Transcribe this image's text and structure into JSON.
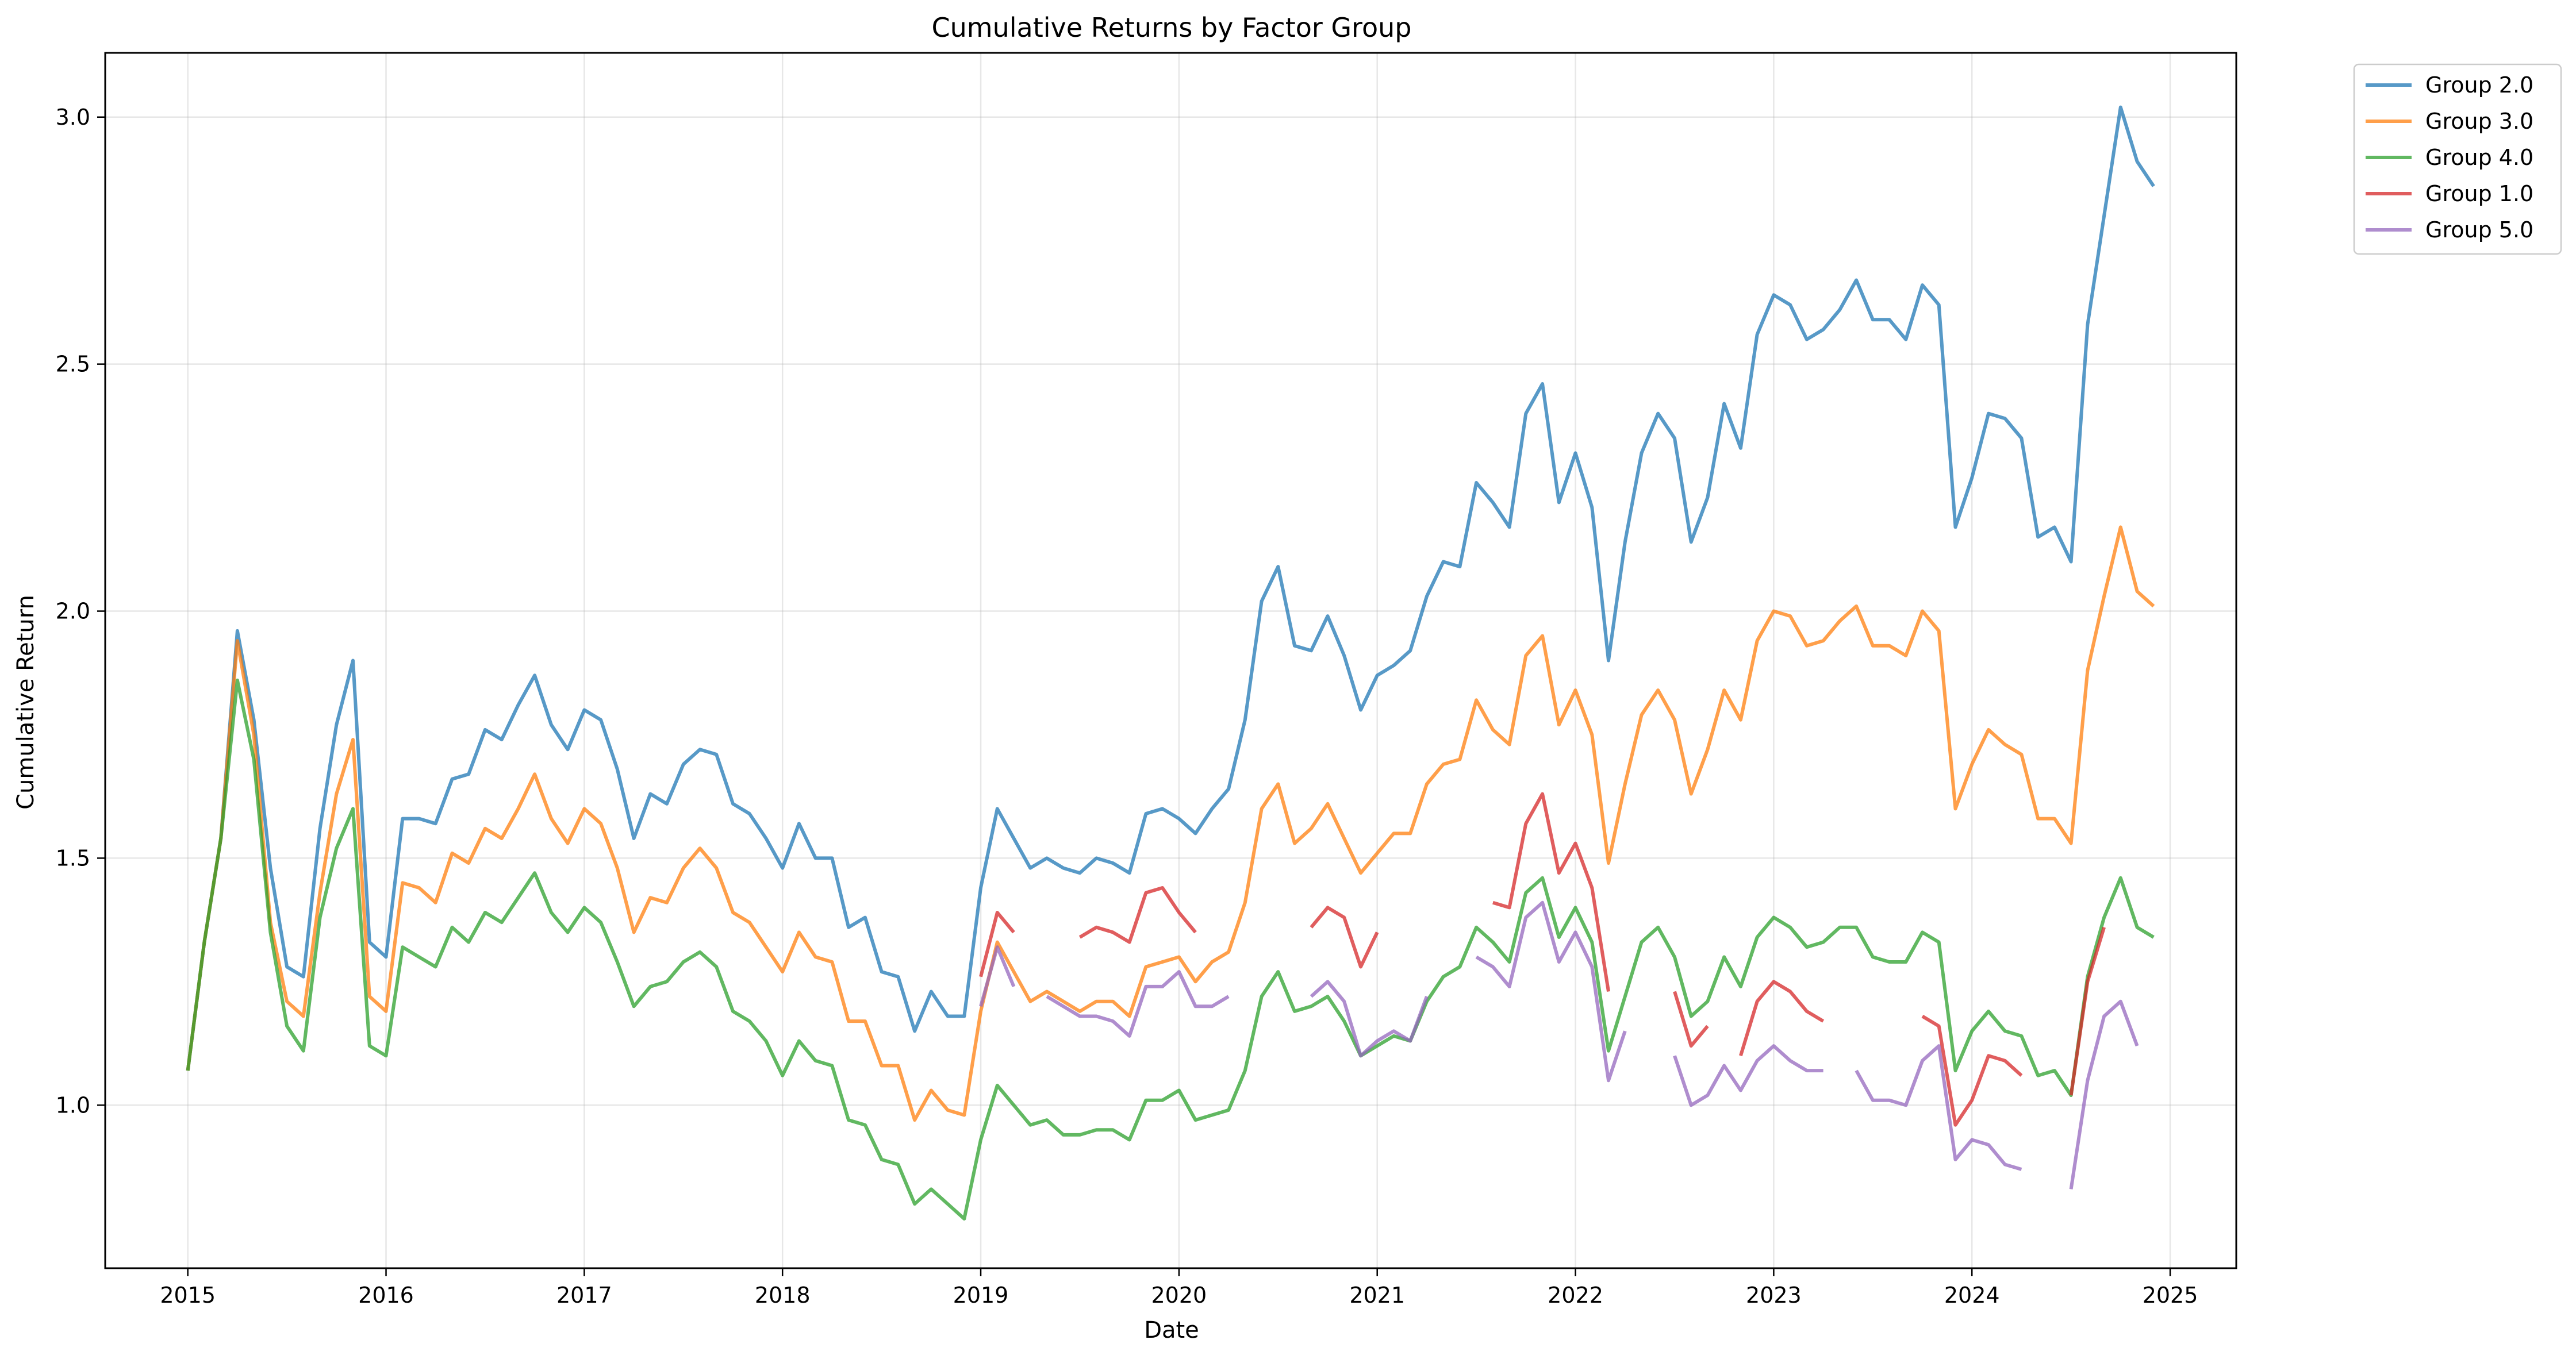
{
  "chart_data": {
    "type": "line",
    "title": "Cumulative Returns by Factor Group",
    "xlabel": "Date",
    "ylabel": "Cumulative Return",
    "xlim": [
      "2014-08-01",
      "2025-05-01"
    ],
    "ylim": [
      0.67,
      3.13
    ],
    "x_ticks": [
      "2015",
      "2016",
      "2017",
      "2018",
      "2019",
      "2020",
      "2021",
      "2022",
      "2023",
      "2024",
      "2025"
    ],
    "y_ticks": [
      "1.0",
      "1.5",
      "2.0",
      "2.5",
      "3.0"
    ],
    "y_tick_values": [
      1.0,
      1.5,
      2.0,
      2.5,
      3.0
    ],
    "grid": true,
    "legend_position": "outside top-right",
    "x_dates": [
      "2015-01",
      "2015-02",
      "2015-03",
      "2015-04",
      "2015-05",
      "2015-06",
      "2015-07",
      "2015-08",
      "2015-09",
      "2015-10",
      "2015-11",
      "2015-12",
      "2016-01",
      "2016-02",
      "2016-03",
      "2016-04",
      "2016-05",
      "2016-06",
      "2016-07",
      "2016-08",
      "2016-09",
      "2016-10",
      "2016-11",
      "2016-12",
      "2017-01",
      "2017-02",
      "2017-03",
      "2017-04",
      "2017-05",
      "2017-06",
      "2017-07",
      "2017-08",
      "2017-09",
      "2017-10",
      "2017-11",
      "2017-12",
      "2018-01",
      "2018-02",
      "2018-03",
      "2018-04",
      "2018-05",
      "2018-06",
      "2018-07",
      "2018-08",
      "2018-09",
      "2018-10",
      "2018-11",
      "2018-12",
      "2019-01",
      "2019-02",
      "2019-03",
      "2019-04",
      "2019-05",
      "2019-06",
      "2019-07",
      "2019-08",
      "2019-09",
      "2019-10",
      "2019-11",
      "2019-12",
      "2020-01",
      "2020-02",
      "2020-03",
      "2020-04",
      "2020-05",
      "2020-06",
      "2020-07",
      "2020-08",
      "2020-09",
      "2020-10",
      "2020-11",
      "2020-12",
      "2021-01",
      "2021-02",
      "2021-03",
      "2021-04",
      "2021-05",
      "2021-06",
      "2021-07",
      "2021-08",
      "2021-09",
      "2021-10",
      "2021-11",
      "2021-12",
      "2022-01",
      "2022-02",
      "2022-03",
      "2022-04",
      "2022-05",
      "2022-06",
      "2022-07",
      "2022-08",
      "2022-09",
      "2022-10",
      "2022-11",
      "2022-12",
      "2023-01",
      "2023-02",
      "2023-03",
      "2023-04",
      "2023-05",
      "2023-06",
      "2023-07",
      "2023-08",
      "2023-09",
      "2023-10",
      "2023-11",
      "2023-12",
      "2024-01",
      "2024-02",
      "2024-03",
      "2024-04",
      "2024-05",
      "2024-06",
      "2024-07",
      "2024-08",
      "2024-09",
      "2024-10",
      "2024-11",
      "2024-12"
    ],
    "series": [
      {
        "name": "Group 2.0",
        "color": "#1f77b4",
        "values": [
          1.07,
          1.33,
          1.54,
          1.96,
          1.78,
          1.48,
          1.28,
          1.26,
          1.56,
          1.77,
          1.9,
          1.33,
          1.3,
          1.58,
          1.58,
          1.57,
          1.66,
          1.67,
          1.76,
          1.74,
          1.81,
          1.87,
          1.77,
          1.72,
          1.8,
          1.78,
          1.68,
          1.54,
          1.63,
          1.61,
          1.69,
          1.72,
          1.71,
          1.61,
          1.59,
          1.54,
          1.48,
          1.57,
          1.5,
          1.5,
          1.36,
          1.38,
          1.27,
          1.26,
          1.15,
          1.23,
          1.18,
          1.18,
          1.44,
          1.6,
          1.54,
          1.48,
          1.5,
          1.48,
          1.47,
          1.5,
          1.49,
          1.47,
          1.59,
          1.6,
          1.58,
          1.55,
          1.6,
          1.64,
          1.78,
          2.02,
          2.09,
          1.93,
          1.92,
          1.99,
          1.91,
          1.8,
          1.87,
          1.89,
          1.92,
          2.03,
          2.1,
          2.09,
          2.26,
          2.22,
          2.17,
          2.4,
          2.46,
          2.22,
          2.32,
          2.21,
          1.9,
          2.14,
          2.32,
          2.4,
          2.35,
          2.14,
          2.23,
          2.42,
          2.33,
          2.56,
          2.64,
          2.62,
          2.55,
          2.57,
          2.61,
          2.67,
          2.59,
          2.59,
          2.55,
          2.66,
          2.62,
          2.17,
          2.27,
          2.4,
          2.39,
          2.35,
          2.15,
          2.17,
          2.1,
          2.58,
          2.8,
          3.02,
          2.91,
          2.86
        ]
      },
      {
        "name": "Group 3.0",
        "color": "#ff7f0e",
        "values": [
          1.07,
          1.33,
          1.54,
          1.94,
          1.75,
          1.37,
          1.21,
          1.18,
          1.43,
          1.63,
          1.74,
          1.22,
          1.19,
          1.45,
          1.44,
          1.41,
          1.51,
          1.49,
          1.56,
          1.54,
          1.6,
          1.67,
          1.58,
          1.53,
          1.6,
          1.57,
          1.48,
          1.35,
          1.42,
          1.41,
          1.48,
          1.52,
          1.48,
          1.39,
          1.37,
          1.32,
          1.27,
          1.35,
          1.3,
          1.29,
          1.17,
          1.17,
          1.08,
          1.08,
          0.97,
          1.03,
          0.99,
          0.98,
          1.19,
          1.33,
          1.27,
          1.21,
          1.23,
          1.21,
          1.19,
          1.21,
          1.21,
          1.18,
          1.28,
          1.29,
          1.3,
          1.25,
          1.29,
          1.31,
          1.41,
          1.6,
          1.65,
          1.53,
          1.56,
          1.61,
          1.54,
          1.47,
          1.51,
          1.55,
          1.55,
          1.65,
          1.69,
          1.7,
          1.82,
          1.76,
          1.73,
          1.91,
          1.95,
          1.77,
          1.84,
          1.75,
          1.49,
          1.65,
          1.79,
          1.84,
          1.78,
          1.63,
          1.72,
          1.84,
          1.78,
          1.94,
          2.0,
          1.99,
          1.93,
          1.94,
          1.98,
          2.01,
          1.93,
          1.93,
          1.91,
          2.0,
          1.96,
          1.6,
          1.69,
          1.76,
          1.73,
          1.71,
          1.58,
          1.58,
          1.53,
          1.88,
          2.03,
          2.17,
          2.04,
          2.01
        ]
      },
      {
        "name": "Group 4.0",
        "color": "#2ca02c",
        "values": [
          1.07,
          1.33,
          1.54,
          1.86,
          1.7,
          1.35,
          1.16,
          1.11,
          1.38,
          1.52,
          1.6,
          1.12,
          1.1,
          1.32,
          1.3,
          1.28,
          1.36,
          1.33,
          1.39,
          1.37,
          1.42,
          1.47,
          1.39,
          1.35,
          1.4,
          1.37,
          1.29,
          1.2,
          1.24,
          1.25,
          1.29,
          1.31,
          1.28,
          1.19,
          1.17,
          1.13,
          1.06,
          1.13,
          1.09,
          1.08,
          0.97,
          0.96,
          0.89,
          0.88,
          0.8,
          0.83,
          0.8,
          0.77,
          0.93,
          1.04,
          1.0,
          0.96,
          0.97,
          0.94,
          0.94,
          0.95,
          0.95,
          0.93,
          1.01,
          1.01,
          1.03,
          0.97,
          0.98,
          0.99,
          1.07,
          1.22,
          1.27,
          1.19,
          1.2,
          1.22,
          1.17,
          1.1,
          1.12,
          1.14,
          1.13,
          1.21,
          1.26,
          1.28,
          1.36,
          1.33,
          1.29,
          1.43,
          1.46,
          1.34,
          1.4,
          1.33,
          1.11,
          1.22,
          1.33,
          1.36,
          1.3,
          1.18,
          1.21,
          1.3,
          1.24,
          1.34,
          1.38,
          1.36,
          1.32,
          1.33,
          1.36,
          1.36,
          1.3,
          1.29,
          1.29,
          1.35,
          1.33,
          1.07,
          1.15,
          1.19,
          1.15,
          1.14,
          1.06,
          1.07,
          1.02,
          1.26,
          1.38,
          1.46,
          1.36,
          1.34
        ]
      },
      {
        "name": "Group 1.0",
        "color": "#d62728",
        "values": [
          null,
          null,
          null,
          null,
          null,
          null,
          null,
          null,
          null,
          null,
          null,
          null,
          null,
          null,
          null,
          null,
          null,
          null,
          null,
          null,
          null,
          null,
          null,
          null,
          null,
          null,
          null,
          null,
          null,
          null,
          null,
          null,
          null,
          null,
          null,
          null,
          null,
          null,
          null,
          null,
          null,
          null,
          null,
          null,
          null,
          null,
          null,
          null,
          1.26,
          1.39,
          1.35,
          null,
          null,
          null,
          1.34,
          1.36,
          1.35,
          1.33,
          1.43,
          1.44,
          1.39,
          1.35,
          null,
          null,
          null,
          null,
          null,
          null,
          1.36,
          1.4,
          1.38,
          1.28,
          1.35,
          null,
          null,
          null,
          null,
          null,
          null,
          1.41,
          1.4,
          1.57,
          1.63,
          1.47,
          1.53,
          1.44,
          1.23,
          null,
          null,
          null,
          1.23,
          1.12,
          1.16,
          null,
          1.1,
          1.21,
          1.25,
          1.23,
          1.19,
          1.17,
          null,
          null,
          null,
          null,
          null,
          1.18,
          1.16,
          0.96,
          1.01,
          1.1,
          1.09,
          1.06,
          null,
          null,
          1.02,
          1.25,
          1.36,
          null,
          null,
          null
        ]
      },
      {
        "name": "Group 5.0",
        "color": "#9467bd",
        "values": [
          null,
          null,
          null,
          null,
          null,
          null,
          null,
          null,
          null,
          null,
          null,
          null,
          null,
          null,
          null,
          null,
          null,
          null,
          null,
          null,
          null,
          null,
          null,
          null,
          null,
          null,
          null,
          null,
          null,
          null,
          null,
          null,
          null,
          null,
          null,
          null,
          null,
          null,
          null,
          null,
          null,
          null,
          null,
          null,
          null,
          null,
          null,
          null,
          1.2,
          1.32,
          1.24,
          null,
          1.22,
          1.2,
          1.18,
          1.18,
          1.17,
          1.14,
          1.24,
          1.24,
          1.27,
          1.2,
          1.2,
          1.22,
          null,
          null,
          null,
          null,
          1.22,
          1.25,
          1.21,
          1.1,
          1.13,
          1.15,
          1.13,
          1.22,
          null,
          null,
          1.3,
          1.28,
          1.24,
          1.38,
          1.41,
          1.29,
          1.35,
          1.28,
          1.05,
          1.15,
          null,
          null,
          1.1,
          1.0,
          1.02,
          1.08,
          1.03,
          1.09,
          1.12,
          1.09,
          1.07,
          1.07,
          null,
          1.07,
          1.01,
          1.01,
          1.0,
          1.09,
          1.12,
          0.89,
          0.93,
          0.92,
          0.88,
          0.87,
          null,
          null,
          0.83,
          1.05,
          1.18,
          1.21,
          1.12,
          null
        ]
      }
    ]
  }
}
